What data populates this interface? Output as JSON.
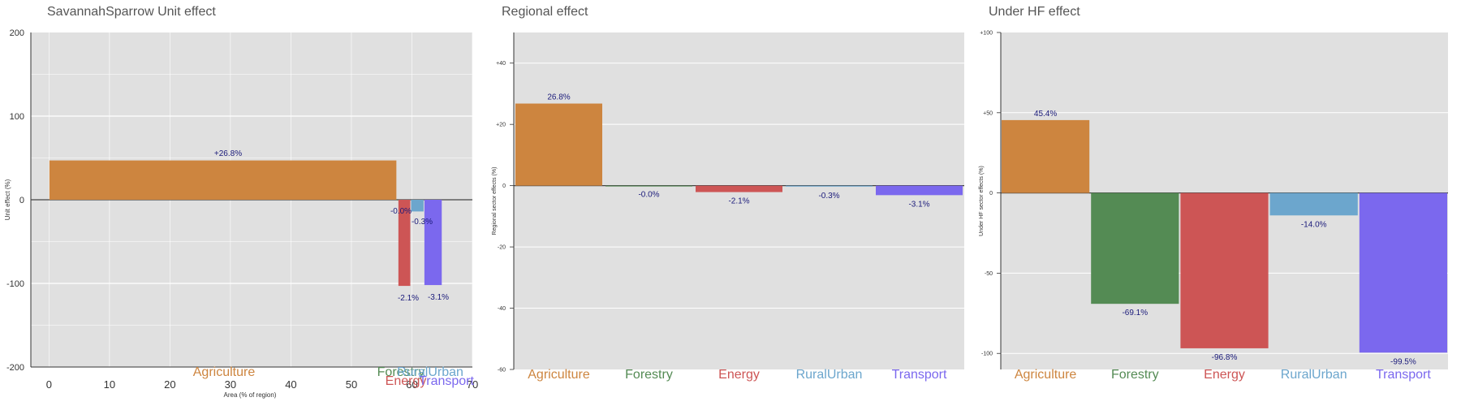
{
  "colors": {
    "Agriculture": "#CD853F",
    "Forestry": "#548B54",
    "Energy": "#CD5555",
    "RuralUrban": "#6CA6CD",
    "Transport": "#7B68EE"
  },
  "chart_data": [
    {
      "type": "bar",
      "title": "SavannahSparrow Unit effect",
      "xlabel": "Area (% of region)",
      "ylabel": "Unit effect (%)",
      "xlim": [
        -3,
        70
      ],
      "ylim": [
        -200,
        200
      ],
      "xticks": [
        "0",
        "10",
        "20",
        "30",
        "40",
        "50",
        "60",
        "70"
      ],
      "yticks": [
        "200",
        "100",
        "0",
        "-100",
        "-200"
      ],
      "bars": [
        {
          "category": "Agriculture",
          "x0": 0,
          "x1": 57.5,
          "value": 47,
          "label": "+26.8%"
        },
        {
          "category": "Forestry",
          "x0": 57.5,
          "x1": 57.7,
          "value": -0.4,
          "label": "-0.0%"
        },
        {
          "category": "Energy",
          "x0": 57.7,
          "x1": 59.8,
          "value": -103,
          "label": "-2.1%"
        },
        {
          "category": "RuralUrban",
          "x0": 59.8,
          "x1": 62,
          "value": -14,
          "label": "-0.3%"
        },
        {
          "category": "Transport",
          "x0": 62,
          "x1": 65,
          "value": -102,
          "label": "-3.1%"
        }
      ]
    },
    {
      "type": "bar",
      "title": "Regional effect",
      "ylabel": "Regional sector effects (%)",
      "ylim": [
        -60,
        50
      ],
      "yticks": [
        "+40",
        "+20",
        "0",
        "-20",
        "-40",
        "-60"
      ],
      "categories": [
        "Agriculture",
        "Forestry",
        "Energy",
        "RuralUrban",
        "Transport"
      ],
      "values": [
        26.8,
        -0.02,
        -2.1,
        -0.3,
        -3.1
      ],
      "labels": [
        "26.8%",
        "-0.0%",
        "-2.1%",
        "-0.3%",
        "-3.1%"
      ]
    },
    {
      "type": "bar",
      "title": "Under HF effect",
      "ylabel": "Under HF sector effects (%)",
      "ylim": [
        -110,
        100
      ],
      "yticks": [
        "+100",
        "+50",
        "0",
        "-50",
        "-100"
      ],
      "categories": [
        "Agriculture",
        "Forestry",
        "Energy",
        "RuralUrban",
        "Transport"
      ],
      "values": [
        45.4,
        -69.1,
        -96.8,
        -14.0,
        -99.5
      ],
      "labels": [
        "45.4%",
        "-69.1%",
        "-96.8%",
        "-14.0%",
        "-99.5%"
      ]
    }
  ]
}
